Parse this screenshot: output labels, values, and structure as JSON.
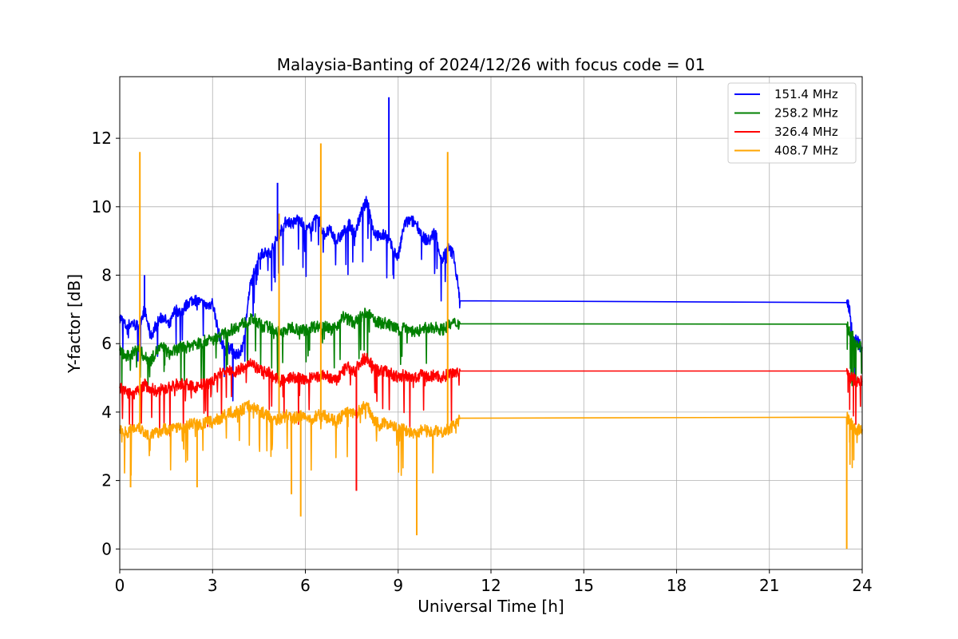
{
  "chart_data": {
    "type": "line",
    "title": "Malaysia-Banting of 2024/12/26 with focus code = 01",
    "xlabel": "Universal Time [h]",
    "ylabel": "Y-factor [dB]",
    "xlim": [
      0,
      24
    ],
    "ylim": [
      -0.6,
      13.8
    ],
    "xticks": [
      0,
      3,
      6,
      9,
      12,
      15,
      18,
      21,
      24
    ],
    "yticks": [
      0,
      2,
      4,
      6,
      8,
      10,
      12
    ],
    "grid": true,
    "legend_position": "top-right",
    "series": [
      {
        "name": "151.4 MHz",
        "color": "#0000ff",
        "x": [
          0.0,
          0.2,
          0.4,
          0.6,
          0.8,
          1.0,
          1.2,
          1.4,
          1.6,
          1.8,
          2.0,
          2.2,
          2.4,
          2.6,
          2.8,
          3.0,
          3.2,
          3.4,
          3.6,
          3.8,
          4.0,
          4.2,
          4.4,
          4.6,
          4.8,
          5.0,
          5.2,
          5.4,
          5.6,
          5.8,
          6.0,
          6.2,
          6.4,
          6.6,
          6.8,
          7.0,
          7.2,
          7.4,
          7.6,
          7.8,
          8.0,
          8.2,
          8.4,
          8.6,
          8.8,
          9.0,
          9.2,
          9.4,
          9.6,
          9.8,
          10.0,
          10.2,
          10.4,
          10.6,
          10.8,
          11.0,
          23.5,
          23.6,
          23.7,
          23.8,
          24.0
        ],
        "y": [
          6.8,
          6.5,
          6.6,
          6.5,
          7.0,
          6.2,
          6.6,
          6.8,
          6.5,
          7.0,
          6.9,
          7.2,
          7.3,
          7.2,
          7.1,
          7.2,
          6.3,
          5.8,
          5.9,
          5.6,
          6.0,
          7.6,
          8.3,
          8.7,
          8.6,
          8.9,
          9.3,
          9.6,
          9.5,
          9.7,
          9.3,
          9.4,
          9.7,
          9.2,
          9.3,
          9.0,
          9.2,
          9.5,
          9.2,
          9.8,
          10.2,
          9.3,
          9.1,
          9.2,
          8.8,
          8.5,
          9.5,
          9.6,
          9.5,
          9.1,
          9.0,
          9.3,
          8.4,
          8.8,
          8.6,
          7.25,
          7.2,
          7.0,
          6.0,
          6.2,
          5.8
        ]
      },
      {
        "name": "258.2 MHz",
        "color": "#008000",
        "x": [
          0.0,
          0.2,
          0.4,
          0.6,
          0.8,
          1.0,
          1.2,
          1.4,
          1.6,
          1.8,
          2.0,
          2.2,
          2.4,
          2.6,
          2.8,
          3.0,
          3.2,
          3.4,
          3.6,
          3.8,
          4.0,
          4.2,
          4.4,
          4.6,
          4.8,
          5.0,
          5.2,
          5.4,
          5.6,
          5.8,
          6.0,
          6.2,
          6.4,
          6.6,
          6.8,
          7.0,
          7.2,
          7.4,
          7.6,
          7.8,
          8.0,
          8.2,
          8.4,
          8.6,
          8.8,
          9.0,
          9.2,
          9.4,
          9.6,
          9.8,
          10.0,
          10.2,
          10.4,
          10.6,
          10.8,
          11.0,
          23.5,
          23.6,
          23.7,
          23.8,
          24.0
        ],
        "y": [
          5.8,
          5.6,
          5.7,
          5.9,
          5.6,
          5.5,
          5.8,
          5.9,
          5.7,
          5.8,
          5.9,
          5.9,
          6.0,
          6.0,
          6.1,
          6.1,
          6.2,
          6.3,
          6.4,
          6.5,
          6.6,
          6.7,
          6.7,
          6.5,
          6.5,
          6.4,
          6.3,
          6.4,
          6.5,
          6.4,
          6.4,
          6.5,
          6.5,
          6.6,
          6.4,
          6.5,
          6.8,
          6.7,
          6.6,
          6.8,
          6.9,
          6.7,
          6.6,
          6.6,
          6.5,
          6.4,
          6.5,
          6.4,
          6.3,
          6.5,
          6.4,
          6.5,
          6.4,
          6.5,
          6.6,
          6.58,
          6.57,
          6.3,
          6.2,
          6.0,
          5.9
        ]
      },
      {
        "name": "326.4 MHz",
        "color": "#ff0000",
        "x": [
          0.0,
          0.2,
          0.4,
          0.6,
          0.8,
          1.0,
          1.2,
          1.4,
          1.6,
          1.8,
          2.0,
          2.2,
          2.4,
          2.6,
          2.8,
          3.0,
          3.2,
          3.4,
          3.6,
          3.8,
          4.0,
          4.2,
          4.4,
          4.6,
          4.8,
          5.0,
          5.2,
          5.4,
          5.6,
          5.8,
          6.0,
          6.2,
          6.4,
          6.6,
          6.8,
          7.0,
          7.2,
          7.4,
          7.6,
          7.8,
          8.0,
          8.2,
          8.4,
          8.6,
          8.8,
          9.0,
          9.2,
          9.4,
          9.6,
          9.8,
          10.0,
          10.2,
          10.4,
          10.6,
          10.8,
          11.0,
          23.5,
          23.6,
          23.7,
          23.8,
          24.0
        ],
        "y": [
          4.7,
          4.6,
          4.5,
          4.6,
          4.8,
          4.7,
          4.6,
          4.7,
          4.7,
          4.8,
          4.8,
          4.8,
          4.7,
          4.8,
          4.8,
          4.9,
          5.1,
          5.2,
          5.2,
          5.2,
          5.3,
          5.4,
          5.3,
          5.2,
          5.2,
          5.0,
          4.9,
          5.0,
          5.0,
          5.0,
          4.9,
          5.0,
          5.0,
          5.1,
          5.0,
          4.9,
          5.2,
          5.3,
          5.2,
          5.5,
          5.6,
          5.3,
          5.2,
          5.2,
          5.1,
          5.0,
          5.1,
          5.0,
          5.0,
          5.1,
          5.0,
          5.1,
          5.0,
          5.1,
          5.2,
          5.2,
          5.2,
          5.0,
          5.0,
          4.9,
          4.9
        ]
      },
      {
        "name": "408.7 MHz",
        "color": "#ffa500",
        "x": [
          0.0,
          0.2,
          0.4,
          0.6,
          0.8,
          1.0,
          1.2,
          1.4,
          1.6,
          1.8,
          2.0,
          2.2,
          2.4,
          2.6,
          2.8,
          3.0,
          3.2,
          3.4,
          3.6,
          3.8,
          4.0,
          4.2,
          4.4,
          4.6,
          4.8,
          5.0,
          5.2,
          5.4,
          5.6,
          5.8,
          6.0,
          6.2,
          6.4,
          6.6,
          6.8,
          7.0,
          7.2,
          7.4,
          7.6,
          7.8,
          8.0,
          8.2,
          8.4,
          8.6,
          8.8,
          9.0,
          9.2,
          9.4,
          9.6,
          9.8,
          10.0,
          10.2,
          10.4,
          10.6,
          10.8,
          11.0,
          23.5,
          23.6,
          23.7,
          23.8,
          24.0
        ],
        "y": [
          3.5,
          3.4,
          3.5,
          3.6,
          3.4,
          3.3,
          3.4,
          3.5,
          3.5,
          3.6,
          3.5,
          3.6,
          3.7,
          3.6,
          3.7,
          3.7,
          3.8,
          3.9,
          4.0,
          4.0,
          4.1,
          4.2,
          4.1,
          4.0,
          3.9,
          3.8,
          3.8,
          3.9,
          3.8,
          3.9,
          3.8,
          3.8,
          3.9,
          3.9,
          3.8,
          3.7,
          3.9,
          4.0,
          3.9,
          4.1,
          4.2,
          3.8,
          3.6,
          3.7,
          3.6,
          3.5,
          3.5,
          3.4,
          3.4,
          3.5,
          3.4,
          3.5,
          3.4,
          3.5,
          3.6,
          3.82,
          3.85,
          3.7,
          3.6,
          3.5,
          3.5
        ]
      }
    ],
    "spikes": [
      {
        "series": "408.7 MHz",
        "x": 0.65,
        "y": 11.6
      },
      {
        "series": "408.7 MHz",
        "x": 5.15,
        "y": 9.8
      },
      {
        "series": "408.7 MHz",
        "x": 6.5,
        "y": 11.85
      },
      {
        "series": "408.7 MHz",
        "x": 10.6,
        "y": 11.6
      },
      {
        "series": "151.4 MHz",
        "x": 8.7,
        "y": 13.2
      },
      {
        "series": "151.4 MHz",
        "x": 5.1,
        "y": 10.7
      },
      {
        "series": "151.4 MHz",
        "x": 0.8,
        "y": 8.0
      },
      {
        "series": "408.7 MHz",
        "x": 5.55,
        "y": 1.6
      },
      {
        "series": "408.7 MHz",
        "x": 5.85,
        "y": 0.95
      },
      {
        "series": "408.7 MHz",
        "x": 9.6,
        "y": 0.4
      },
      {
        "series": "408.7 MHz",
        "x": 23.5,
        "y": 0.0
      },
      {
        "series": "408.7 MHz",
        "x": 0.35,
        "y": 1.8
      },
      {
        "series": "408.7 MHz",
        "x": 2.5,
        "y": 1.8
      },
      {
        "series": "326.4 MHz",
        "x": 7.65,
        "y": 1.7
      }
    ]
  }
}
